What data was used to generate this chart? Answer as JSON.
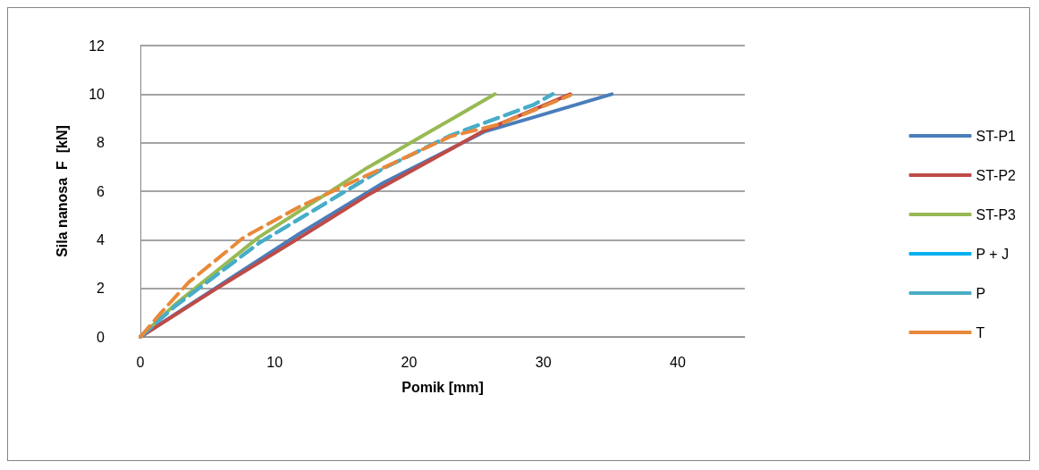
{
  "chart_data": {
    "type": "line",
    "xlabel": "Pomik [mm]",
    "ylabel": "Sila nanosa  F  [kN]",
    "xlim": [
      0,
      45
    ],
    "xticks": [
      0,
      10,
      20,
      30,
      40
    ],
    "ylim": [
      0,
      12
    ],
    "yticks": [
      0,
      2,
      4,
      6,
      8,
      10,
      12
    ],
    "grid": "y",
    "legend": "right",
    "marker": "none",
    "series": [
      {
        "name": "ST-P1",
        "color": "#4a7ebb",
        "line_style": "solid",
        "x": [
          0,
          5.7,
          11.9,
          18.1,
          25.6,
          29.3,
          35.1
        ],
        "values": [
          0,
          2.05,
          4.27,
          6.35,
          8.45,
          9.05,
          10
        ]
      },
      {
        "name": "ST-P2",
        "color": "#be4b48",
        "line_style": "solid",
        "x": [
          0,
          5.7,
          11.9,
          16.9,
          25.6,
          32.0
        ],
        "values": [
          0,
          2.0,
          4.1,
          5.83,
          8.5,
          10
        ]
      },
      {
        "name": "ST-P3",
        "color": "#98b954",
        "line_style": "solid",
        "x": [
          0,
          2.55,
          8.8,
          16.9,
          21.7,
          26.4
        ],
        "values": [
          0,
          1.32,
          4.1,
          6.97,
          8.5,
          10
        ]
      },
      {
        "name": "P + J",
        "color": "#00b0f0",
        "line_style": "dashed",
        "x": [
          0,
          2.55,
          8.8,
          18.1,
          23.1,
          29.3,
          30.7
        ],
        "values": [
          0,
          1.25,
          3.85,
          6.94,
          8.3,
          9.57,
          10
        ]
      },
      {
        "name": "P",
        "color": "#4bacc6",
        "line_style": "dashed",
        "x": [
          0,
          2.55,
          8.8,
          18.1,
          23.1,
          29.3,
          30.7
        ],
        "values": [
          0,
          1.25,
          3.85,
          6.94,
          8.3,
          9.57,
          10
        ]
      },
      {
        "name": "T",
        "color": "#e8893a",
        "line_style": "dashed",
        "x": [
          0,
          1.5,
          3.6,
          7.7,
          11.9,
          18.1,
          23.1,
          26.8,
          32.0
        ],
        "values": [
          0,
          0.97,
          2.25,
          4.1,
          5.38,
          6.97,
          8.26,
          8.77,
          9.95
        ]
      }
    ]
  }
}
